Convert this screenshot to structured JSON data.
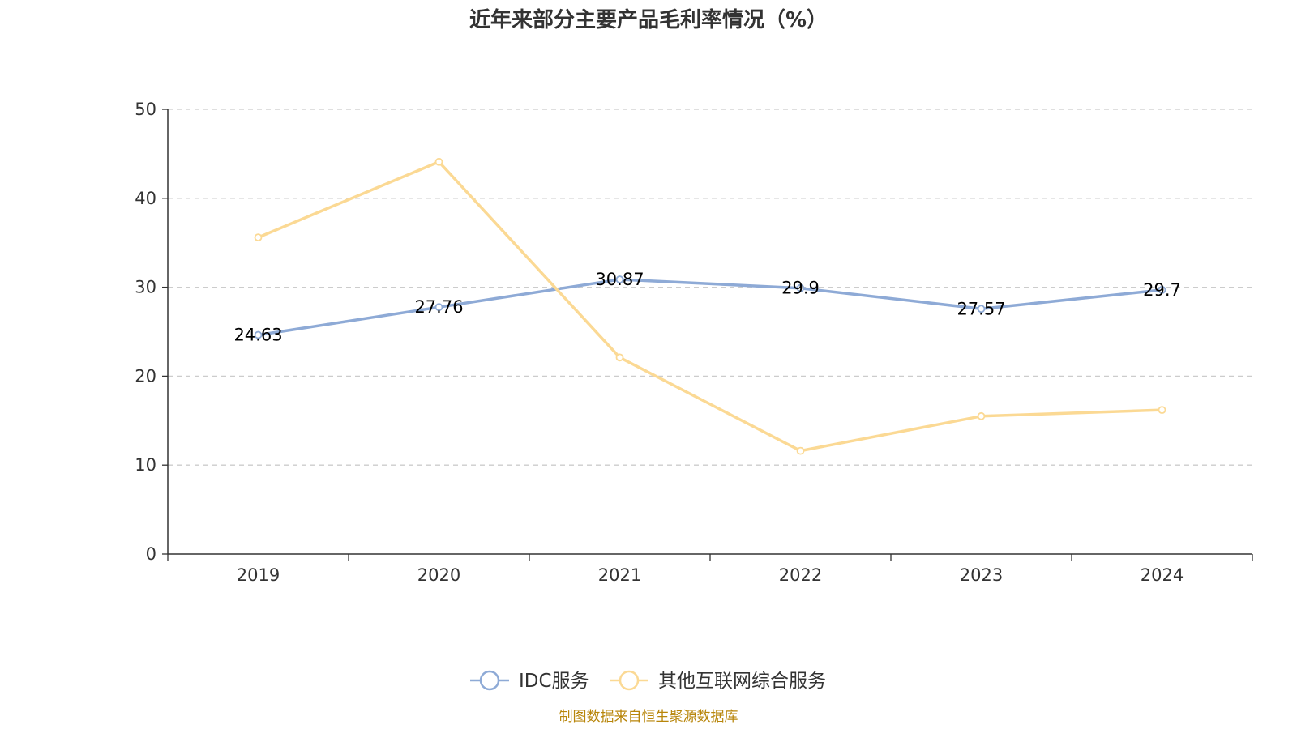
{
  "chart_data": {
    "type": "line",
    "title": "近年来部分主要产品毛利率情况（%）",
    "categories": [
      "2019",
      "2020",
      "2021",
      "2022",
      "2023",
      "2024"
    ],
    "yticks": [
      "0",
      "10",
      "20",
      "30",
      "40",
      "50"
    ],
    "ylim": [
      0,
      50
    ],
    "grid": true,
    "legend_position": "bottom",
    "series": [
      {
        "name": "IDC服务",
        "color": "#8eaad6",
        "values": [
          24.63,
          27.76,
          30.87,
          29.9,
          27.57,
          29.7
        ],
        "labels": [
          "24.63",
          "27.76",
          "30.87",
          "29.9",
          "27.57",
          "29.7"
        ]
      },
      {
        "name": "其他互联网综合服务",
        "color": "#fbd994",
        "values": [
          35.6,
          44.1,
          22.1,
          11.6,
          15.5,
          16.2
        ]
      }
    ],
    "source": "制图数据来自恒生聚源数据库",
    "source_color": "#b8860b"
  }
}
